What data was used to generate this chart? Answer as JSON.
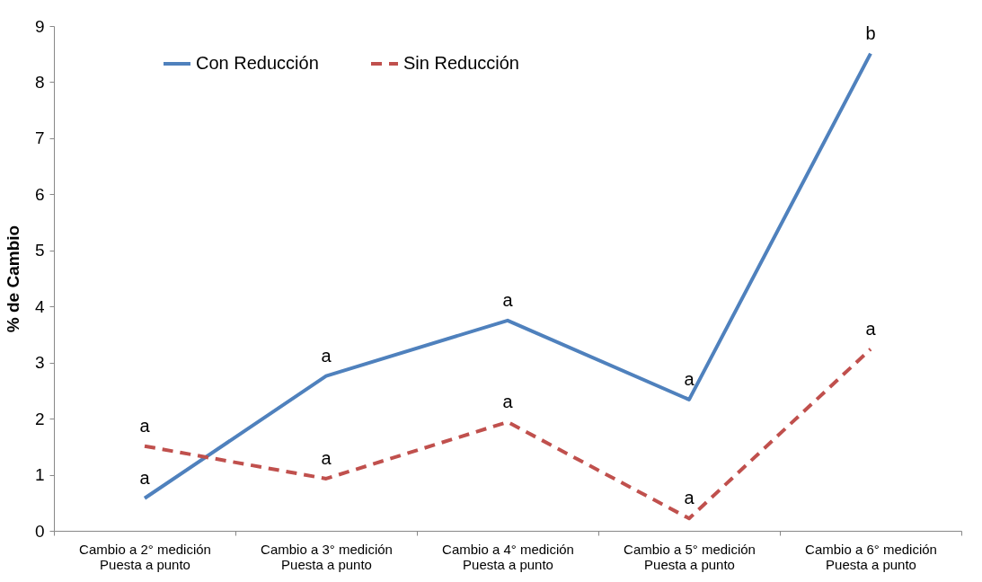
{
  "chart_data": {
    "type": "line",
    "ylabel": "% de Cambio",
    "categories": [
      "Cambio a 2° medición\nPuesta a punto",
      "Cambio a 3° medición\nPuesta a punto",
      "Cambio a 4° medición\nPuesta a punto",
      "Cambio a 5° medición\nPuesta a punto",
      "Cambio a 6° medición\nPuesta a punto"
    ],
    "series": [
      {
        "name": "Con Reducción",
        "color": "#4f81bd",
        "line_style": "solid",
        "values": [
          0.58,
          2.76,
          3.75,
          2.34,
          8.51
        ]
      },
      {
        "name": "Sin Reducción",
        "color": "#c0504d",
        "line_style": "dashed",
        "values": [
          1.51,
          0.93,
          1.94,
          0.22,
          3.24
        ]
      }
    ],
    "ylim": [
      0,
      9
    ],
    "yticks": [
      0,
      1,
      2,
      3,
      4,
      5,
      6,
      7,
      8,
      9
    ],
    "grid": false,
    "legend": "top",
    "marker": "none",
    "annotations": [
      {
        "text": "a",
        "x": "Cambio a 2° medición\nPuesta a punto",
        "y": 0.58
      },
      {
        "text": "a",
        "x": "Cambio a 2° medición\nPuesta a punto",
        "y": 1.51
      },
      {
        "text": "a",
        "x": "Cambio a 3° medición\nPuesta a punto",
        "y": 2.76
      },
      {
        "text": "a",
        "x": "Cambio a 3° medición\nPuesta a punto",
        "y": 0.93
      },
      {
        "text": "a",
        "x": "Cambio a 4° medición\nPuesta a punto",
        "y": 3.75
      },
      {
        "text": "a",
        "x": "Cambio a 4° medición\nPuesta a punto",
        "y": 1.94
      },
      {
        "text": "a",
        "x": "Cambio a 5° medición\nPuesta a punto",
        "y": 2.34
      },
      {
        "text": "a",
        "x": "Cambio a 5° medición\nPuesta a punto",
        "y": 0.22
      },
      {
        "text": "b",
        "x": "Cambio a 6° medición\nPuesta a punto",
        "y": 8.51
      },
      {
        "text": "a",
        "x": "Cambio a 6° medición\nPuesta a punto",
        "y": 3.24
      }
    ]
  }
}
